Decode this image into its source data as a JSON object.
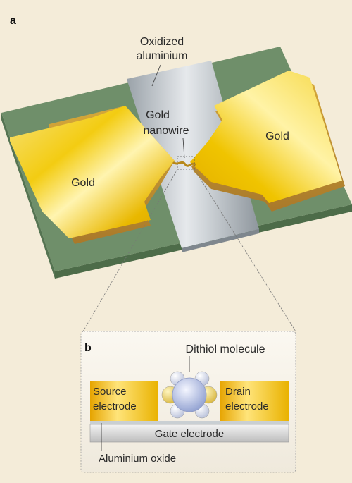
{
  "panel_a": {
    "letter": "a",
    "oxidized_label_line1": "Oxidized",
    "oxidized_label_line2": "aluminium",
    "nanowire_label_line1": "Gold",
    "nanowire_label_line2": "nanowire",
    "left_gold_label": "Gold",
    "right_gold_label": "Gold"
  },
  "panel_b": {
    "letter": "b",
    "molecule_label": "Dithiol molecule",
    "source_line1": "Source",
    "source_line2": "electrode",
    "drain_line1": "Drain",
    "drain_line2": "electrode",
    "gate_label": "Gate electrode",
    "oxide_label": "Aluminium oxide"
  },
  "colors": {
    "background": "#f4ecd9",
    "substrate": "#6f8f6a",
    "gold": "#f2c400",
    "aluminium": "#b9c0c6"
  }
}
